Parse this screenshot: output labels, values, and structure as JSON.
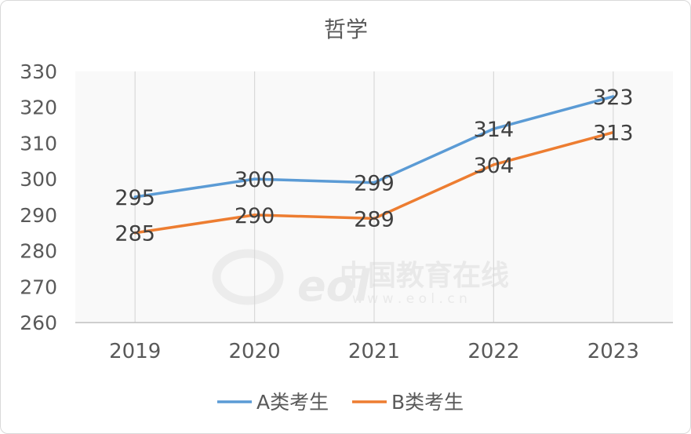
{
  "chart_data": {
    "type": "line",
    "title": "哲学",
    "categories": [
      "2019",
      "2020",
      "2021",
      "2022",
      "2023"
    ],
    "series": [
      {
        "name": "A类考生",
        "color": "#5b9bd5",
        "values": [
          295,
          300,
          299,
          314,
          323
        ]
      },
      {
        "name": "B类考生",
        "color": "#ed7d31",
        "values": [
          285,
          290,
          289,
          304,
          313
        ]
      }
    ],
    "ylim": [
      260,
      330
    ],
    "yticks": [
      260,
      270,
      280,
      290,
      300,
      310,
      320,
      330
    ],
    "xlabel": "",
    "ylabel": "",
    "grid": "vertical",
    "legend_position": "bottom"
  },
  "watermark": {
    "logo_text": "eol",
    "name": "中国教育在线",
    "url": "w w w . e o l . c n"
  }
}
